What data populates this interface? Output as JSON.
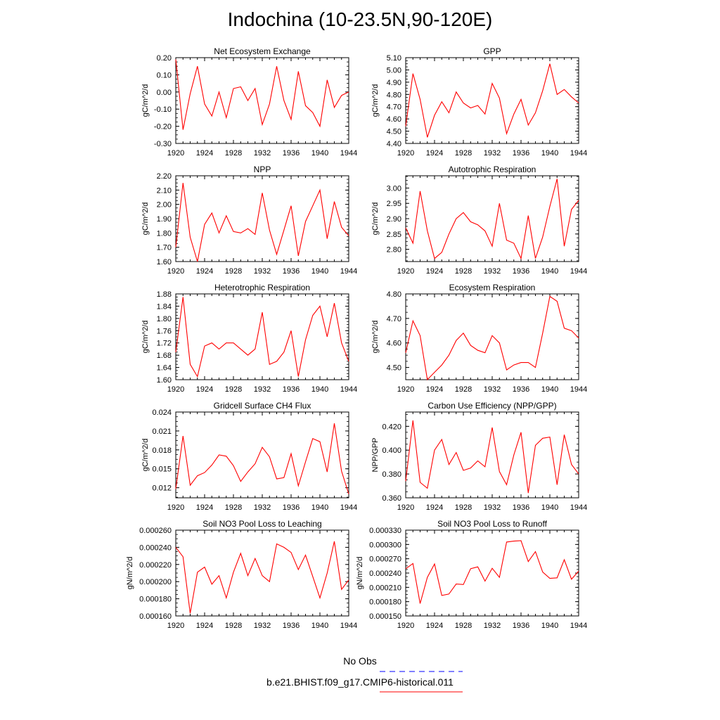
{
  "title": "Indochina (10-23.5N,90-120E)",
  "colors": {
    "series": "#ff0000",
    "obs": "#0000ff"
  },
  "legend": {
    "position": "bottom-center",
    "entries": [
      {
        "label": "No Obs",
        "style": "dashed",
        "color": "#0000ff"
      },
      {
        "label": "b.e21.BHIST.f09_g17.CMIP6-historical.011",
        "style": "solid",
        "color": "#ff0000"
      }
    ]
  },
  "chart_data": [
    {
      "type": "line",
      "title": "Net Ecosystem Exchange",
      "ylabel": "gC/m^2/d",
      "xlim": [
        1920,
        1944
      ],
      "xticks": [
        "1920",
        "1924",
        "1928",
        "1932",
        "1936",
        "1940",
        "1944"
      ],
      "ylim": [
        -0.3,
        0.2
      ],
      "yticks": [
        "0.20",
        "0.10",
        "0.00",
        "-0.10",
        "-0.20",
        "-0.30"
      ],
      "x": [
        1920,
        1921,
        1922,
        1923,
        1924,
        1925,
        1926,
        1927,
        1928,
        1929,
        1930,
        1931,
        1932,
        1933,
        1934,
        1935,
        1936,
        1937,
        1938,
        1939,
        1940,
        1941,
        1942,
        1943,
        1944
      ],
      "series": [
        {
          "values": [
            0.19,
            -0.22,
            -0.01,
            0.15,
            -0.07,
            -0.14,
            0.0,
            -0.15,
            0.02,
            0.03,
            -0.05,
            0.02,
            -0.19,
            -0.07,
            0.15,
            -0.05,
            -0.16,
            0.12,
            -0.08,
            -0.12,
            -0.2,
            0.07,
            -0.09,
            -0.02,
            0.0
          ]
        }
      ]
    },
    {
      "type": "line",
      "title": "GPP",
      "ylabel": "gC/m^2/d",
      "xlim": [
        1920,
        1944
      ],
      "xticks": [
        "1920",
        "1924",
        "1928",
        "1932",
        "1936",
        "1940",
        "1944"
      ],
      "ylim": [
        4.4,
        5.1
      ],
      "yticks": [
        "5.10",
        "5.00",
        "4.90",
        "4.80",
        "4.70",
        "4.60",
        "4.50",
        "4.40"
      ],
      "x": [
        1920,
        1921,
        1922,
        1923,
        1924,
        1925,
        1926,
        1927,
        1928,
        1929,
        1930,
        1931,
        1932,
        1933,
        1934,
        1935,
        1936,
        1937,
        1938,
        1939,
        1940,
        1941,
        1942,
        1943,
        1944
      ],
      "series": [
        {
          "values": [
            4.54,
            4.97,
            4.76,
            4.45,
            4.63,
            4.74,
            4.65,
            4.82,
            4.73,
            4.69,
            4.71,
            4.64,
            4.89,
            4.77,
            4.48,
            4.64,
            4.76,
            4.55,
            4.65,
            4.83,
            5.05,
            4.8,
            4.84,
            4.78,
            4.73
          ]
        }
      ]
    },
    {
      "type": "line",
      "title": "NPP",
      "ylabel": "gC/m^2/d",
      "xlim": [
        1920,
        1944
      ],
      "xticks": [
        "1920",
        "1924",
        "1928",
        "1932",
        "1936",
        "1940",
        "1944"
      ],
      "ylim": [
        1.6,
        2.2
      ],
      "yticks": [
        "2.20",
        "2.10",
        "2.00",
        "1.90",
        "1.80",
        "1.70",
        "1.60"
      ],
      "x": [
        1920,
        1921,
        1922,
        1923,
        1924,
        1925,
        1926,
        1927,
        1928,
        1929,
        1930,
        1931,
        1932,
        1933,
        1934,
        1935,
        1936,
        1937,
        1938,
        1939,
        1940,
        1941,
        1942,
        1943,
        1944
      ],
      "series": [
        {
          "values": [
            1.7,
            2.15,
            1.77,
            1.6,
            1.86,
            1.94,
            1.8,
            1.92,
            1.81,
            1.8,
            1.83,
            1.79,
            2.08,
            1.82,
            1.65,
            1.82,
            1.99,
            1.64,
            1.88,
            1.99,
            2.1,
            1.76,
            2.02,
            1.84,
            1.78
          ]
        }
      ]
    },
    {
      "type": "line",
      "title": "Autotrophic Respiration",
      "ylabel": "gC/m^2/d",
      "xlim": [
        1920,
        1944
      ],
      "xticks": [
        "1920",
        "1924",
        "1928",
        "1932",
        "1936",
        "1940",
        "1944"
      ],
      "ylim": [
        2.76,
        3.04
      ],
      "yticks": [
        "3.00",
        "2.95",
        "2.90",
        "2.85",
        "2.80"
      ],
      "x": [
        1920,
        1921,
        1922,
        1923,
        1924,
        1925,
        1926,
        1927,
        1928,
        1929,
        1930,
        1931,
        1932,
        1933,
        1934,
        1935,
        1936,
        1937,
        1938,
        1939,
        1940,
        1941,
        1942,
        1943,
        1944
      ],
      "series": [
        {
          "values": [
            2.87,
            2.82,
            2.99,
            2.86,
            2.77,
            2.79,
            2.85,
            2.9,
            2.92,
            2.89,
            2.88,
            2.86,
            2.81,
            2.95,
            2.83,
            2.82,
            2.77,
            2.91,
            2.77,
            2.84,
            2.94,
            3.03,
            2.81,
            2.93,
            2.96
          ]
        }
      ]
    },
    {
      "type": "line",
      "title": "Heterotrophic Respiration",
      "ylabel": "gC/m^2/d",
      "xlim": [
        1920,
        1944
      ],
      "xticks": [
        "1920",
        "1924",
        "1928",
        "1932",
        "1936",
        "1940",
        "1944"
      ],
      "ylim": [
        1.6,
        1.88
      ],
      "yticks": [
        "1.88",
        "1.84",
        "1.80",
        "1.76",
        "1.72",
        "1.68",
        "1.64",
        "1.60"
      ],
      "x": [
        1920,
        1921,
        1922,
        1923,
        1924,
        1925,
        1926,
        1927,
        1928,
        1929,
        1930,
        1931,
        1932,
        1933,
        1934,
        1935,
        1936,
        1937,
        1938,
        1939,
        1940,
        1941,
        1942,
        1943,
        1944
      ],
      "series": [
        {
          "values": [
            1.69,
            1.87,
            1.65,
            1.61,
            1.71,
            1.72,
            1.7,
            1.72,
            1.72,
            1.7,
            1.68,
            1.7,
            1.82,
            1.65,
            1.66,
            1.69,
            1.76,
            1.61,
            1.73,
            1.81,
            1.84,
            1.74,
            1.85,
            1.72,
            1.66
          ]
        }
      ]
    },
    {
      "type": "line",
      "title": "Ecosystem Respiration",
      "ylabel": "gC/m^2/d",
      "xlim": [
        1920,
        1944
      ],
      "xticks": [
        "1920",
        "1924",
        "1928",
        "1932",
        "1936",
        "1940",
        "1944"
      ],
      "ylim": [
        4.45,
        4.8
      ],
      "yticks": [
        "4.80",
        "4.70",
        "4.60",
        "4.50"
      ],
      "x": [
        1920,
        1921,
        1922,
        1923,
        1924,
        1925,
        1926,
        1927,
        1928,
        1929,
        1930,
        1931,
        1932,
        1933,
        1934,
        1935,
        1936,
        1937,
        1938,
        1939,
        1940,
        1941,
        1942,
        1943,
        1944
      ],
      "series": [
        {
          "values": [
            4.56,
            4.69,
            4.63,
            4.45,
            4.48,
            4.51,
            4.55,
            4.61,
            4.64,
            4.59,
            4.57,
            4.56,
            4.63,
            4.6,
            4.49,
            4.51,
            4.52,
            4.52,
            4.5,
            4.64,
            4.79,
            4.77,
            4.66,
            4.65,
            4.62
          ]
        }
      ]
    },
    {
      "type": "line",
      "title": "Gridcell Surface CH4 Flux",
      "ylabel": "gC/m^2/d",
      "xlim": [
        1920,
        1944
      ],
      "xticks": [
        "1920",
        "1924",
        "1928",
        "1932",
        "1936",
        "1940",
        "1944"
      ],
      "ylim": [
        0.0104,
        0.024
      ],
      "yticks": [
        "0.024",
        "0.021",
        "0.018",
        "0.015",
        "0.012"
      ],
      "x": [
        1920,
        1921,
        1922,
        1923,
        1924,
        1925,
        1926,
        1927,
        1928,
        1929,
        1930,
        1931,
        1932,
        1933,
        1934,
        1935,
        1936,
        1937,
        1938,
        1939,
        1940,
        1941,
        1942,
        1943,
        1944
      ],
      "series": [
        {
          "values": [
            0.0118,
            0.0202,
            0.0124,
            0.0139,
            0.0144,
            0.0156,
            0.0172,
            0.017,
            0.0155,
            0.013,
            0.0145,
            0.0158,
            0.0184,
            0.0169,
            0.0134,
            0.0136,
            0.0174,
            0.0123,
            0.0161,
            0.0198,
            0.0193,
            0.0145,
            0.0222,
            0.0146,
            0.011
          ]
        }
      ]
    },
    {
      "type": "line",
      "title": "Carbon Use Efficiency (NPP/GPP)",
      "ylabel": "NPP/GPP",
      "xlim": [
        1920,
        1944
      ],
      "xticks": [
        "1920",
        "1924",
        "1928",
        "1932",
        "1936",
        "1940",
        "1944"
      ],
      "ylim": [
        0.36,
        0.432
      ],
      "yticks": [
        "0.420",
        "0.400",
        "0.380",
        "0.360"
      ],
      "x": [
        1920,
        1921,
        1922,
        1923,
        1924,
        1925,
        1926,
        1927,
        1928,
        1929,
        1930,
        1931,
        1932,
        1933,
        1934,
        1935,
        1936,
        1937,
        1938,
        1939,
        1940,
        1941,
        1942,
        1943,
        1944
      ],
      "series": [
        {
          "values": [
            0.374,
            0.425,
            0.373,
            0.368,
            0.4,
            0.409,
            0.388,
            0.398,
            0.383,
            0.385,
            0.391,
            0.386,
            0.419,
            0.382,
            0.371,
            0.396,
            0.415,
            0.364,
            0.404,
            0.41,
            0.411,
            0.371,
            0.413,
            0.388,
            0.38
          ]
        }
      ]
    },
    {
      "type": "line",
      "title": "Soil NO3 Pool Loss to Leaching",
      "ylabel": "gN/m^2/d",
      "xlim": [
        1920,
        1944
      ],
      "xticks": [
        "1920",
        "1924",
        "1928",
        "1932",
        "1936",
        "1940",
        "1944"
      ],
      "ylim": [
        0.00016,
        0.00026
      ],
      "yticks": [
        "0.000260",
        "0.000240",
        "0.000220",
        "0.000200",
        "0.000180",
        "0.000160"
      ],
      "x": [
        1920,
        1921,
        1922,
        1923,
        1924,
        1925,
        1926,
        1927,
        1928,
        1929,
        1930,
        1931,
        1932,
        1933,
        1934,
        1935,
        1936,
        1937,
        1938,
        1939,
        1940,
        1941,
        1942,
        1943,
        1944
      ],
      "series": [
        {
          "values": [
            0.00024,
            0.000229,
            0.000163,
            0.000211,
            0.000217,
            0.000197,
            0.000207,
            0.000181,
            0.000211,
            0.000233,
            0.000207,
            0.000227,
            0.000207,
            0.0002,
            0.000244,
            0.00024,
            0.000234,
            0.000214,
            0.000231,
            0.000206,
            0.000181,
            0.00021,
            0.000247,
            0.000191,
            0.000202
          ]
        }
      ]
    },
    {
      "type": "line",
      "title": "Soil NO3 Pool Loss to Runoff",
      "ylabel": "gN/m^2/d",
      "xlim": [
        1920,
        1944
      ],
      "xticks": [
        "1920",
        "1924",
        "1928",
        "1932",
        "1936",
        "1940",
        "1944"
      ],
      "ylim": [
        0.00015,
        0.00033
      ],
      "yticks": [
        "0.000330",
        "0.000300",
        "0.000270",
        "0.000240",
        "0.000210",
        "0.000180",
        "0.000150"
      ],
      "x": [
        1920,
        1921,
        1922,
        1923,
        1924,
        1925,
        1926,
        1927,
        1928,
        1929,
        1930,
        1931,
        1932,
        1933,
        1934,
        1935,
        1936,
        1937,
        1938,
        1939,
        1940,
        1941,
        1942,
        1943,
        1944
      ],
      "series": [
        {
          "values": [
            0.000249,
            0.00026,
            0.000176,
            0.000231,
            0.000259,
            0.000193,
            0.000196,
            0.000217,
            0.000216,
            0.000249,
            0.000253,
            0.000223,
            0.00025,
            0.000231,
            0.000305,
            0.000307,
            0.000308,
            0.000264,
            0.000285,
            0.000242,
            0.000229,
            0.00023,
            0.000268,
            0.000227,
            0.000244
          ]
        }
      ]
    }
  ]
}
